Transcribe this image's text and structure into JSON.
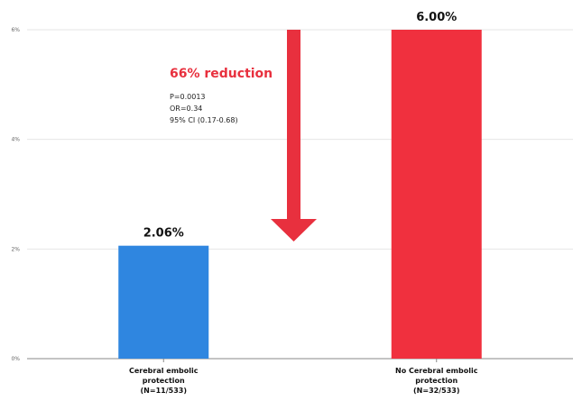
{
  "chart_data": {
    "type": "bar",
    "categories": [
      [
        "Cerebral embolic",
        "protection",
        "(N=11/533)"
      ],
      [
        "No Cerebral embolic",
        "protection",
        "(N=32/533)"
      ]
    ],
    "values": [
      2.06,
      6.0
    ],
    "value_labels": [
      "2.06%",
      "6.00%"
    ],
    "colors": [
      "#2f86e0",
      "#f0303e"
    ],
    "yticks": [
      "0%",
      "2%",
      "4%",
      "6%"
    ],
    "ytick_values": [
      0,
      2,
      4,
      6
    ],
    "ylim": [
      0,
      6
    ],
    "grid": true,
    "annotation": {
      "title": "66% reduction",
      "lines": [
        "P=0.0013",
        "OR=0.34",
        "95% CI (0.17-0.68)"
      ],
      "arrow_color": "#e8303e"
    }
  }
}
